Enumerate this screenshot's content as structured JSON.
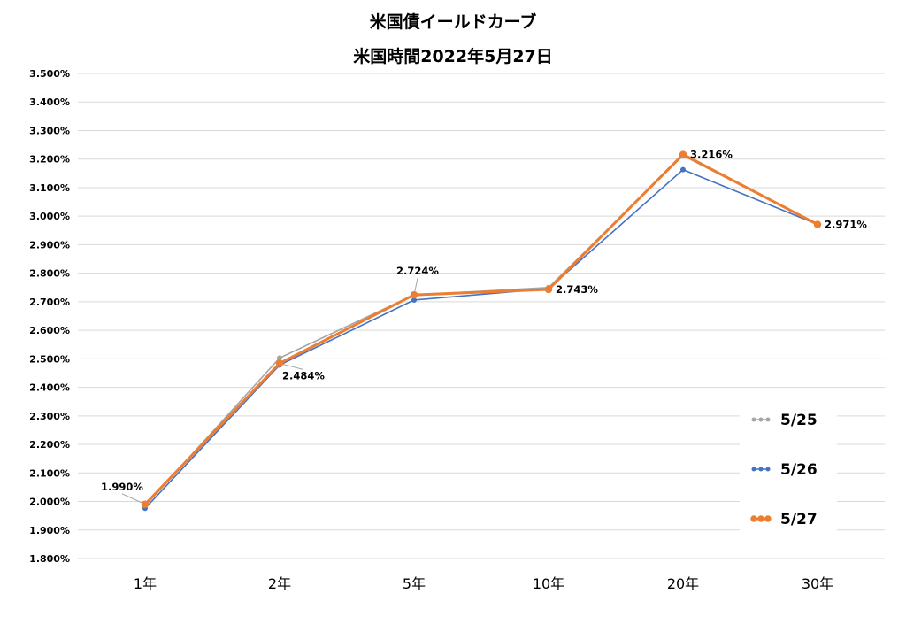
{
  "chart_data": {
    "type": "line",
    "title": "米国債イールドカーブ",
    "subtitle": "米国時間2022年5月27日",
    "categories": [
      "1年",
      "2年",
      "5年",
      "10年",
      "20年",
      "30年"
    ],
    "ylim": [
      1.8,
      3.5
    ],
    "yticks": [
      1.8,
      1.9,
      2.0,
      2.1,
      2.2,
      2.3,
      2.4,
      2.5,
      2.6,
      2.7,
      2.8,
      2.9,
      3.0,
      3.1,
      3.2,
      3.3,
      3.4,
      3.5
    ],
    "ytick_labels": [
      "1.800%",
      "1.900%",
      "2.000%",
      "2.100%",
      "2.200%",
      "2.300%",
      "2.400%",
      "2.500%",
      "2.600%",
      "2.700%",
      "2.800%",
      "2.900%",
      "3.000%",
      "3.100%",
      "3.200%",
      "3.300%",
      "3.400%",
      "3.500%"
    ],
    "grid": true,
    "legend_position": "bottom-right",
    "series": [
      {
        "name": "5/25",
        "color": "#a5a5a5",
        "values": [
          1.985,
          2.503,
          2.724,
          2.75,
          3.212,
          2.971
        ]
      },
      {
        "name": "5/26",
        "color": "#4472c4",
        "values": [
          1.976,
          2.478,
          2.706,
          2.746,
          3.163,
          2.971
        ]
      },
      {
        "name": "5/27",
        "color": "#ed7d31",
        "values": [
          1.99,
          2.484,
          2.724,
          2.743,
          3.216,
          2.971
        ]
      }
    ],
    "data_labels": [
      {
        "series": "5/27",
        "index": 0,
        "text": "1.990%",
        "placement": "above-left"
      },
      {
        "series": "5/27",
        "index": 1,
        "text": "2.484%",
        "placement": "below-right"
      },
      {
        "series": "5/27",
        "index": 2,
        "text": "2.724%",
        "placement": "above"
      },
      {
        "series": "5/27",
        "index": 3,
        "text": "2.743%",
        "placement": "right"
      },
      {
        "series": "5/27",
        "index": 4,
        "text": "3.216%",
        "placement": "right"
      },
      {
        "series": "5/27",
        "index": 5,
        "text": "2.971%",
        "placement": "right"
      }
    ]
  }
}
